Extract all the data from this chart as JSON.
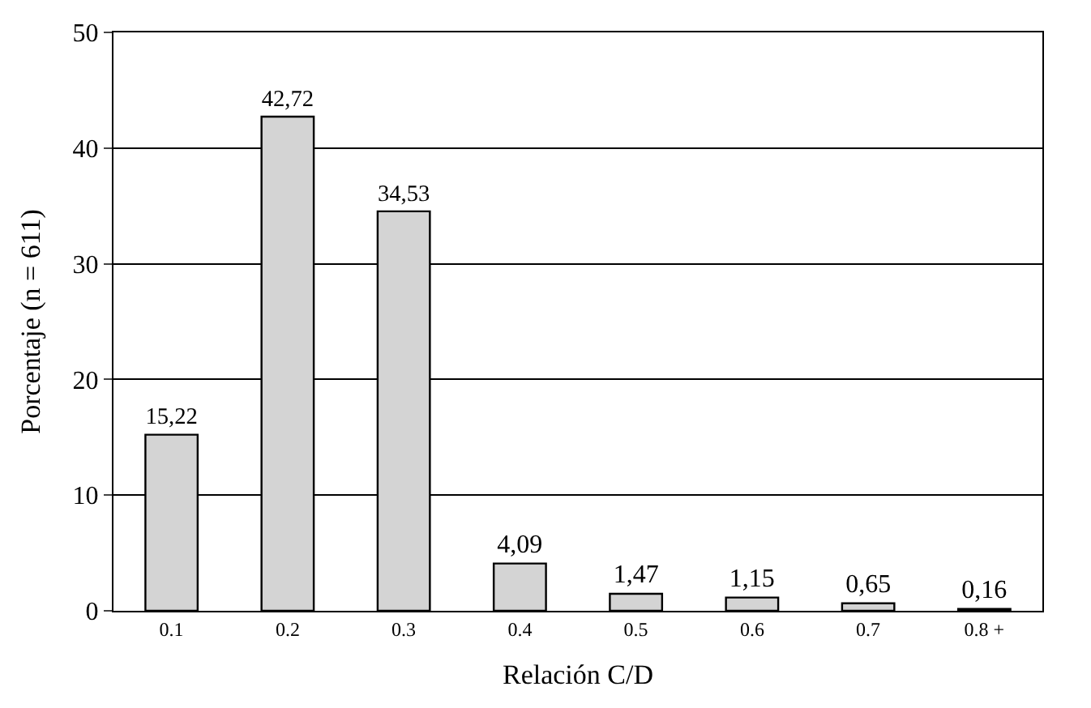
{
  "chart_data": {
    "type": "bar",
    "xlabel": "Relación C/D",
    "ylabel": "Porcentaje (n = 611)",
    "categories": [
      "0.1",
      "0.2",
      "0.3",
      "0.4",
      "0.5",
      "0.6",
      "0.7",
      "0.8 +"
    ],
    "values": [
      15.22,
      42.72,
      34.53,
      4.09,
      1.47,
      1.15,
      0.65,
      0.16
    ],
    "value_labels": [
      "15,22",
      "42,72",
      "34,53",
      "4,09",
      "1,47",
      "1,15",
      "0,65",
      "0,16"
    ],
    "color": "#d4d4d4",
    "ylim": [
      0,
      50
    ],
    "yticks": [
      0,
      10,
      20,
      30,
      40,
      50
    ],
    "grid": "y"
  }
}
